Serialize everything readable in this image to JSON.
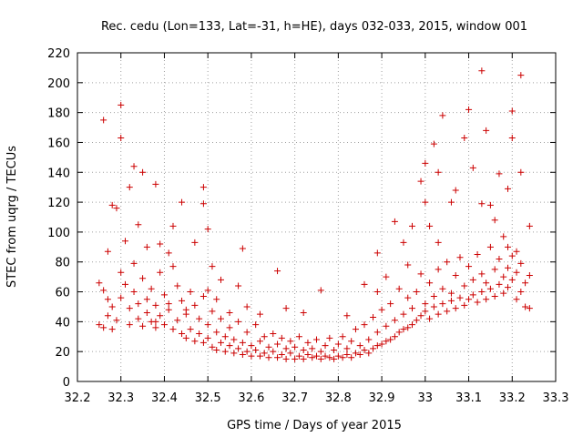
{
  "chart_data": {
    "type": "scatter",
    "title": "Rec. cedu (Lon=133, Lat=-31, h=HE), days 032-033, 2015, window 001",
    "xlabel": "GPS time / Days of year 2015",
    "ylabel": "STEC from uqrg / TECUs",
    "xlim": [
      32.2,
      33.3
    ],
    "ylim": [
      0,
      220
    ],
    "x_ticks": [
      32.2,
      32.3,
      32.4,
      32.5,
      32.6,
      32.7,
      32.8,
      32.9,
      33.0,
      33.1,
      33.2,
      33.3
    ],
    "x_tick_labels": [
      "32.2",
      "32.3",
      "32.4",
      "32.5",
      "32.6",
      "32.7",
      "32.8",
      "32.9",
      "33",
      "33.1",
      "33.2",
      "33.3"
    ],
    "y_ticks": [
      0,
      20,
      40,
      60,
      80,
      100,
      120,
      140,
      160,
      180,
      200,
      220
    ],
    "y_tick_labels": [
      "0",
      "20",
      "40",
      "60",
      "80",
      "100",
      "120",
      "140",
      "160",
      "180",
      "200",
      "220"
    ],
    "grid": true,
    "marker": "plus",
    "color": "#cc0000",
    "series": [
      {
        "name": "STEC",
        "points": [
          [
            32.26,
            175
          ],
          [
            32.28,
            118
          ],
          [
            32.3,
            185
          ],
          [
            32.3,
            163
          ],
          [
            32.32,
            130
          ],
          [
            32.33,
            144
          ],
          [
            32.35,
            140
          ],
          [
            32.38,
            132
          ],
          [
            32.44,
            120
          ],
          [
            32.49,
            130
          ],
          [
            32.49,
            119
          ],
          [
            32.5,
            102
          ],
          [
            32.58,
            89
          ],
          [
            32.66,
            74
          ],
          [
            32.99,
            134
          ],
          [
            33.0,
            146
          ],
          [
            33.02,
            159
          ],
          [
            33.03,
            140
          ],
          [
            33.04,
            178
          ],
          [
            33.1,
            182
          ],
          [
            33.13,
            208
          ],
          [
            33.14,
            168
          ],
          [
            33.17,
            139
          ],
          [
            33.2,
            181
          ],
          [
            33.2,
            163
          ],
          [
            33.22,
            205
          ],
          [
            33.22,
            140
          ],
          [
            33.19,
            129
          ],
          [
            32.27,
            87
          ],
          [
            32.29,
            116
          ],
          [
            32.31,
            94
          ],
          [
            32.34,
            105
          ],
          [
            32.36,
            90
          ],
          [
            32.39,
            92
          ],
          [
            32.41,
            86
          ],
          [
            32.42,
            104
          ],
          [
            32.47,
            93
          ],
          [
            32.51,
            77
          ],
          [
            32.53,
            68
          ],
          [
            32.57,
            64
          ],
          [
            32.89,
            86
          ],
          [
            32.93,
            107
          ],
          [
            32.95,
            93
          ],
          [
            32.97,
            104
          ],
          [
            33.0,
            120
          ],
          [
            33.01,
            104
          ],
          [
            33.03,
            93
          ],
          [
            33.06,
            120
          ],
          [
            33.07,
            128
          ],
          [
            33.09,
            163
          ],
          [
            33.11,
            143
          ],
          [
            33.13,
            119
          ],
          [
            33.15,
            118
          ],
          [
            33.16,
            108
          ],
          [
            33.18,
            97
          ],
          [
            33.19,
            90
          ],
          [
            33.21,
            87
          ],
          [
            33.24,
            104
          ],
          [
            32.25,
            66
          ],
          [
            32.26,
            61
          ],
          [
            32.27,
            55
          ],
          [
            32.28,
            50
          ],
          [
            32.25,
            38
          ],
          [
            32.26,
            36
          ],
          [
            32.27,
            44
          ],
          [
            32.28,
            35
          ],
          [
            32.29,
            41
          ],
          [
            32.3,
            56
          ],
          [
            32.3,
            73
          ],
          [
            32.31,
            65
          ],
          [
            32.32,
            49
          ],
          [
            32.32,
            38
          ],
          [
            32.33,
            79
          ],
          [
            32.33,
            60
          ],
          [
            32.34,
            52
          ],
          [
            32.34,
            42
          ],
          [
            32.35,
            69
          ],
          [
            32.35,
            37
          ],
          [
            32.36,
            55
          ],
          [
            32.36,
            46
          ],
          [
            32.37,
            62
          ],
          [
            32.37,
            40
          ],
          [
            32.38,
            51
          ],
          [
            32.38,
            36
          ],
          [
            32.39,
            73
          ],
          [
            32.39,
            44
          ],
          [
            32.4,
            58
          ],
          [
            32.4,
            38
          ],
          [
            32.41,
            48
          ],
          [
            32.42,
            77
          ],
          [
            32.42,
            35
          ],
          [
            32.43,
            64
          ],
          [
            32.43,
            41
          ],
          [
            32.44,
            54
          ],
          [
            32.44,
            32
          ],
          [
            32.45,
            45
          ],
          [
            32.45,
            29
          ],
          [
            32.46,
            60
          ],
          [
            32.46,
            35
          ],
          [
            32.47,
            51
          ],
          [
            32.47,
            27
          ],
          [
            32.48,
            42
          ],
          [
            32.48,
            32
          ],
          [
            32.49,
            57
          ],
          [
            32.49,
            26
          ],
          [
            32.5,
            38
          ],
          [
            32.5,
            29
          ],
          [
            32.51,
            47
          ],
          [
            32.51,
            23
          ],
          [
            32.52,
            33
          ],
          [
            32.52,
            21
          ],
          [
            32.53,
            42
          ],
          [
            32.53,
            26
          ],
          [
            32.54,
            30
          ],
          [
            32.54,
            20
          ],
          [
            32.55,
            36
          ],
          [
            32.55,
            24
          ],
          [
            32.56,
            28
          ],
          [
            32.56,
            19
          ],
          [
            32.57,
            40
          ],
          [
            32.57,
            22
          ],
          [
            32.58,
            26
          ],
          [
            32.58,
            18
          ],
          [
            32.59,
            33
          ],
          [
            32.59,
            20
          ],
          [
            32.6,
            24
          ],
          [
            32.6,
            17
          ],
          [
            32.61,
            38
          ],
          [
            32.61,
            21
          ],
          [
            32.62,
            27
          ],
          [
            32.62,
            17
          ],
          [
            32.63,
            30
          ],
          [
            32.63,
            19
          ],
          [
            32.64,
            23
          ],
          [
            32.64,
            16
          ],
          [
            32.65,
            32
          ],
          [
            32.65,
            20
          ],
          [
            32.66,
            25
          ],
          [
            32.66,
            16
          ],
          [
            32.67,
            29
          ],
          [
            32.67,
            18
          ],
          [
            32.68,
            22
          ],
          [
            32.68,
            15
          ],
          [
            32.69,
            27
          ],
          [
            32.69,
            19
          ],
          [
            32.7,
            23
          ],
          [
            32.7,
            15
          ],
          [
            32.71,
            30
          ],
          [
            32.71,
            17
          ],
          [
            32.72,
            21
          ],
          [
            32.72,
            15
          ],
          [
            32.73,
            26
          ],
          [
            32.73,
            18
          ],
          [
            32.74,
            22
          ],
          [
            32.74,
            16
          ],
          [
            32.75,
            28
          ],
          [
            32.75,
            17
          ],
          [
            32.76,
            20
          ],
          [
            32.76,
            15
          ],
          [
            32.77,
            24
          ],
          [
            32.77,
            17
          ],
          [
            32.78,
            29
          ],
          [
            32.78,
            16
          ],
          [
            32.79,
            21
          ],
          [
            32.79,
            15
          ],
          [
            32.8,
            25
          ],
          [
            32.8,
            17
          ],
          [
            32.81,
            30
          ],
          [
            32.81,
            16
          ],
          [
            32.82,
            22
          ],
          [
            32.82,
            18
          ],
          [
            32.83,
            27
          ],
          [
            32.83,
            16
          ],
          [
            32.84,
            35
          ],
          [
            32.84,
            19
          ],
          [
            32.85,
            24
          ],
          [
            32.85,
            18
          ],
          [
            32.86,
            38
          ],
          [
            32.86,
            21
          ],
          [
            32.87,
            28
          ],
          [
            32.87,
            19
          ],
          [
            32.88,
            43
          ],
          [
            32.88,
            22
          ],
          [
            32.89,
            33
          ],
          [
            32.89,
            24
          ],
          [
            32.9,
            48
          ],
          [
            32.9,
            25
          ],
          [
            32.91,
            37
          ],
          [
            32.91,
            27
          ],
          [
            32.92,
            52
          ],
          [
            32.92,
            28
          ],
          [
            32.93,
            41
          ],
          [
            32.93,
            30
          ],
          [
            32.94,
            62
          ],
          [
            32.94,
            33
          ],
          [
            32.95,
            45
          ],
          [
            32.95,
            35
          ],
          [
            32.96,
            56
          ],
          [
            32.96,
            36
          ],
          [
            32.97,
            49
          ],
          [
            32.97,
            38
          ],
          [
            32.98,
            60
          ],
          [
            32.98,
            41
          ],
          [
            32.99,
            72
          ],
          [
            32.99,
            44
          ],
          [
            33.0,
            52
          ],
          [
            33.0,
            47
          ],
          [
            33.01,
            66
          ],
          [
            33.01,
            42
          ],
          [
            33.02,
            57
          ],
          [
            33.02,
            50
          ],
          [
            33.03,
            75
          ],
          [
            33.03,
            45
          ],
          [
            33.04,
            62
          ],
          [
            33.04,
            52
          ],
          [
            33.05,
            80
          ],
          [
            33.05,
            47
          ],
          [
            33.06,
            59
          ],
          [
            33.06,
            54
          ],
          [
            33.07,
            71
          ],
          [
            33.07,
            49
          ],
          [
            33.08,
            83
          ],
          [
            33.08,
            56
          ],
          [
            33.09,
            64
          ],
          [
            33.09,
            51
          ],
          [
            33.1,
            77
          ],
          [
            33.1,
            55
          ],
          [
            33.11,
            68
          ],
          [
            33.11,
            58
          ],
          [
            33.12,
            85
          ],
          [
            33.12,
            53
          ],
          [
            33.13,
            72
          ],
          [
            33.13,
            60
          ],
          [
            33.14,
            66
          ],
          [
            33.14,
            55
          ],
          [
            33.15,
            90
          ],
          [
            33.15,
            62
          ],
          [
            33.16,
            75
          ],
          [
            33.16,
            57
          ],
          [
            33.17,
            82
          ],
          [
            33.17,
            65
          ],
          [
            33.18,
            70
          ],
          [
            33.18,
            59
          ],
          [
            33.19,
            76
          ],
          [
            33.19,
            63
          ],
          [
            33.2,
            84
          ],
          [
            33.2,
            68
          ],
          [
            33.21,
            73
          ],
          [
            33.21,
            55
          ],
          [
            33.22,
            79
          ],
          [
            33.22,
            60
          ],
          [
            33.23,
            66
          ],
          [
            33.23,
            50
          ],
          [
            33.24,
            71
          ],
          [
            33.24,
            49
          ],
          [
            32.38,
            40
          ],
          [
            32.41,
            52
          ],
          [
            32.45,
            48
          ],
          [
            32.5,
            61
          ],
          [
            32.52,
            55
          ],
          [
            32.55,
            46
          ],
          [
            32.59,
            50
          ],
          [
            32.62,
            45
          ],
          [
            32.68,
            49
          ],
          [
            32.72,
            46
          ],
          [
            32.76,
            61
          ],
          [
            32.82,
            44
          ],
          [
            32.86,
            65
          ],
          [
            32.89,
            60
          ],
          [
            32.91,
            70
          ],
          [
            32.96,
            78
          ]
        ]
      }
    ]
  }
}
